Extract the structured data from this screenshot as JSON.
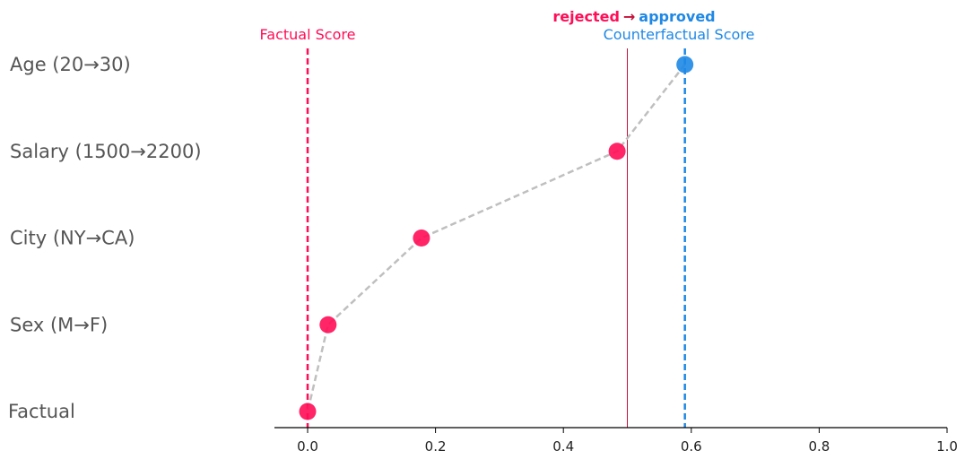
{
  "chart_data": {
    "type": "scatter",
    "xlim": [
      -0.05,
      1.0
    ],
    "x_ticks": [
      0.0,
      0.2,
      0.4,
      0.6,
      0.8,
      1.0
    ],
    "x_tick_labels": [
      "0.0",
      "0.2",
      "0.4",
      "0.6",
      "0.8",
      "1.0"
    ],
    "rows": [
      {
        "label": "Age (20→30)",
        "value": 0.59,
        "color": "#1e88e5"
      },
      {
        "label": "Salary (1500→2200)",
        "value": 0.484,
        "color": "#ff0d57"
      },
      {
        "label": "City (NY→CA)",
        "value": 0.178,
        "color": "#ff0d57"
      },
      {
        "label": "Sex (M→F)",
        "value": 0.032,
        "color": "#ff0d57"
      },
      {
        "label": "Factual",
        "value": 0.0,
        "color": "#ff0d57"
      }
    ],
    "factual_score": {
      "label": "Factual Score",
      "value": 0.0,
      "color": "#ff0d57"
    },
    "counterfactual_score": {
      "label": "Counterfactual Score",
      "value": 0.59,
      "color": "#1e88e5"
    },
    "threshold": {
      "value": 0.5,
      "color": "#c4113a"
    },
    "outcome": {
      "from": "rejected",
      "arrow": "→",
      "to": "approved",
      "from_color": "#ff0d57",
      "arrow_color": "#c4113a",
      "to_color": "#1e88e5"
    },
    "path_color": "#bfbfbf"
  }
}
